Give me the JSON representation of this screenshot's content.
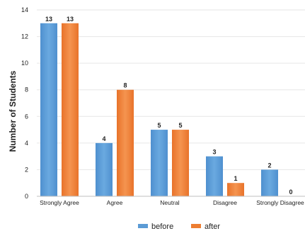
{
  "chart_data": {
    "type": "bar",
    "categories": [
      "Strongly Agree",
      "Agree",
      "Neutral",
      "Disagree",
      "Strongly Disagree"
    ],
    "series": [
      {
        "name": "before",
        "values": [
          13,
          4,
          5,
          3,
          2
        ],
        "color": "#5b9bd5"
      },
      {
        "name": "after",
        "values": [
          13,
          8,
          5,
          1,
          0
        ],
        "color": "#ed7d31"
      }
    ],
    "title": "",
    "xlabel": "",
    "ylabel": "Number of Students",
    "ylim": [
      0,
      14
    ],
    "yticks": [
      0,
      2,
      4,
      6,
      8,
      10,
      12,
      14
    ],
    "grid": true,
    "legend_position": "bottom"
  }
}
